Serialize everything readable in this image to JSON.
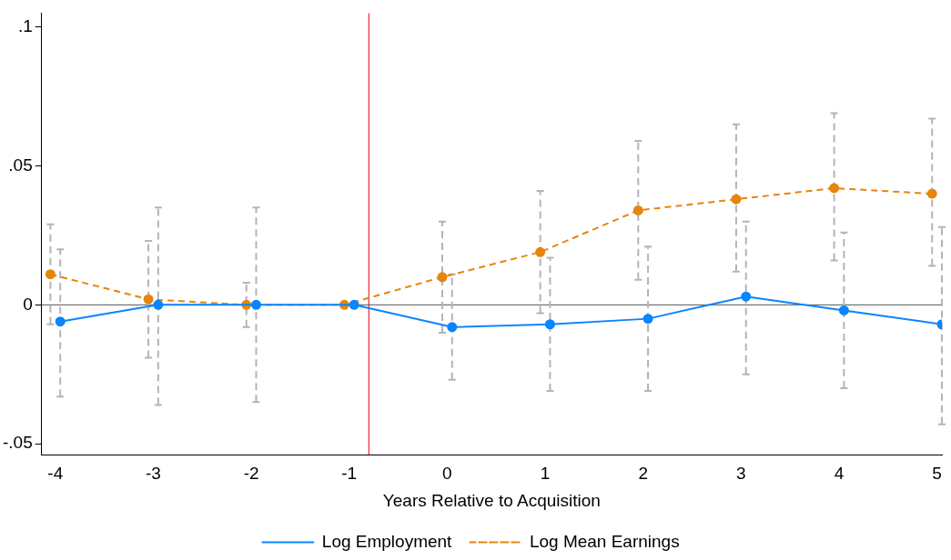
{
  "chart_data": {
    "type": "line",
    "xlabel": "Years Relative to Acquisition",
    "xlim": [
      -4.14,
      5.05
    ],
    "xticks": [
      -4,
      -3,
      -2,
      -1,
      0,
      1,
      2,
      3,
      4,
      5
    ],
    "ylim": [
      -0.054,
      0.105
    ],
    "yticks": [
      {
        "value": -0.05,
        "label": "-.05"
      },
      {
        "value": 0,
        "label": "0"
      },
      {
        "value": 0.05,
        "label": ".05"
      },
      {
        "value": 0.1,
        "label": ".1"
      }
    ],
    "grid": false,
    "legend": "bottom",
    "marker": "circle",
    "series": [
      {
        "name": "Log Employment",
        "color": "#0a84ff",
        "line_style": "solid",
        "x": [
          -3.95,
          -2.95,
          -1.95,
          -0.95,
          0.05,
          1.05,
          2.05,
          3.05,
          4.05,
          5.05
        ],
        "values": [
          -0.006,
          0,
          0,
          0,
          -0.008,
          -0.007,
          -0.005,
          0.003,
          -0.002,
          -0.007
        ],
        "errors": [
          [
            -0.033,
            0.02
          ],
          [
            -0.036,
            0.035
          ],
          [
            -0.035,
            0.035
          ],
          null,
          [
            -0.027,
            0.011
          ],
          [
            -0.031,
            0.017
          ],
          [
            -0.031,
            0.021
          ],
          [
            -0.025,
            0.03
          ],
          [
            -0.03,
            0.026
          ],
          [
            -0.043,
            0.028
          ]
        ]
      },
      {
        "name": "Log Mean Earnings",
        "color": "#e5850d",
        "line_style": "dashed",
        "x": [
          -4.05,
          -3.05,
          -2.05,
          -1.05,
          -0.05,
          0.95,
          1.95,
          2.95,
          3.95,
          4.95
        ],
        "values": [
          0.011,
          0.002,
          0,
          0,
          0.01,
          0.019,
          0.034,
          0.038,
          0.042,
          0.04
        ],
        "errors": [
          [
            -0.007,
            0.029
          ],
          [
            -0.019,
            0.023
          ],
          [
            -0.008,
            0.008
          ],
          null,
          [
            -0.01,
            0.03
          ],
          [
            -0.003,
            0.041
          ],
          [
            0.009,
            0.059
          ],
          [
            0.012,
            0.065
          ],
          [
            0.016,
            0.069
          ],
          [
            0.014,
            0.067
          ]
        ]
      }
    ],
    "ref_lines": [
      {
        "axis": "x",
        "value": -0.8,
        "color": "#e8000b"
      },
      {
        "axis": "y",
        "value": 0,
        "color": "#555555"
      }
    ]
  }
}
